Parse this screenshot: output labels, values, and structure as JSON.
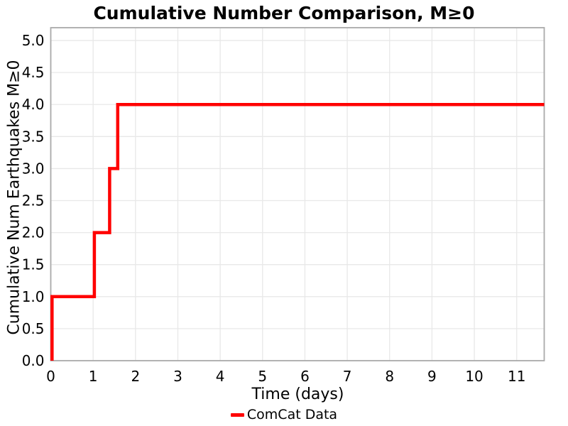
{
  "chart_data": {
    "type": "line",
    "title": "Cumulative Number Comparison, M≥0",
    "xlabel": "Time (days)",
    "ylabel": "Cumulative Num Earthquakes M≥0",
    "xlim": [
      0,
      11.65
    ],
    "ylim": [
      0,
      5.2
    ],
    "xticks": [
      0,
      1,
      2,
      3,
      4,
      5,
      6,
      7,
      8,
      9,
      10,
      11
    ],
    "yticks": [
      0.0,
      0.5,
      1.0,
      1.5,
      2.0,
      2.5,
      3.0,
      3.5,
      4.0,
      4.5,
      5.0
    ],
    "grid": true,
    "legend": {
      "position": "bottom-center",
      "entries": [
        {
          "label": "ComCat Data",
          "color": "#ff0000"
        }
      ]
    },
    "series": [
      {
        "name": "ComCat Data",
        "color": "#ff0000",
        "line_width": 4.5,
        "draw_style": "step-cumulative",
        "event_times_days": [
          0.03,
          1.03,
          1.39,
          1.58
        ],
        "cumulative_counts": [
          1,
          2,
          3,
          4
        ],
        "points": [
          [
            0.03,
            0
          ],
          [
            0.03,
            1
          ],
          [
            1.03,
            1
          ],
          [
            1.03,
            2
          ],
          [
            1.39,
            2
          ],
          [
            1.39,
            3
          ],
          [
            1.58,
            3
          ],
          [
            1.58,
            4
          ],
          [
            11.65,
            4
          ]
        ]
      }
    ],
    "colors": {
      "series_red": "#ff0000",
      "grid": "#e8e8e8",
      "spine": "#aaaaaa",
      "text": "#000000",
      "background": "#ffffff"
    }
  }
}
